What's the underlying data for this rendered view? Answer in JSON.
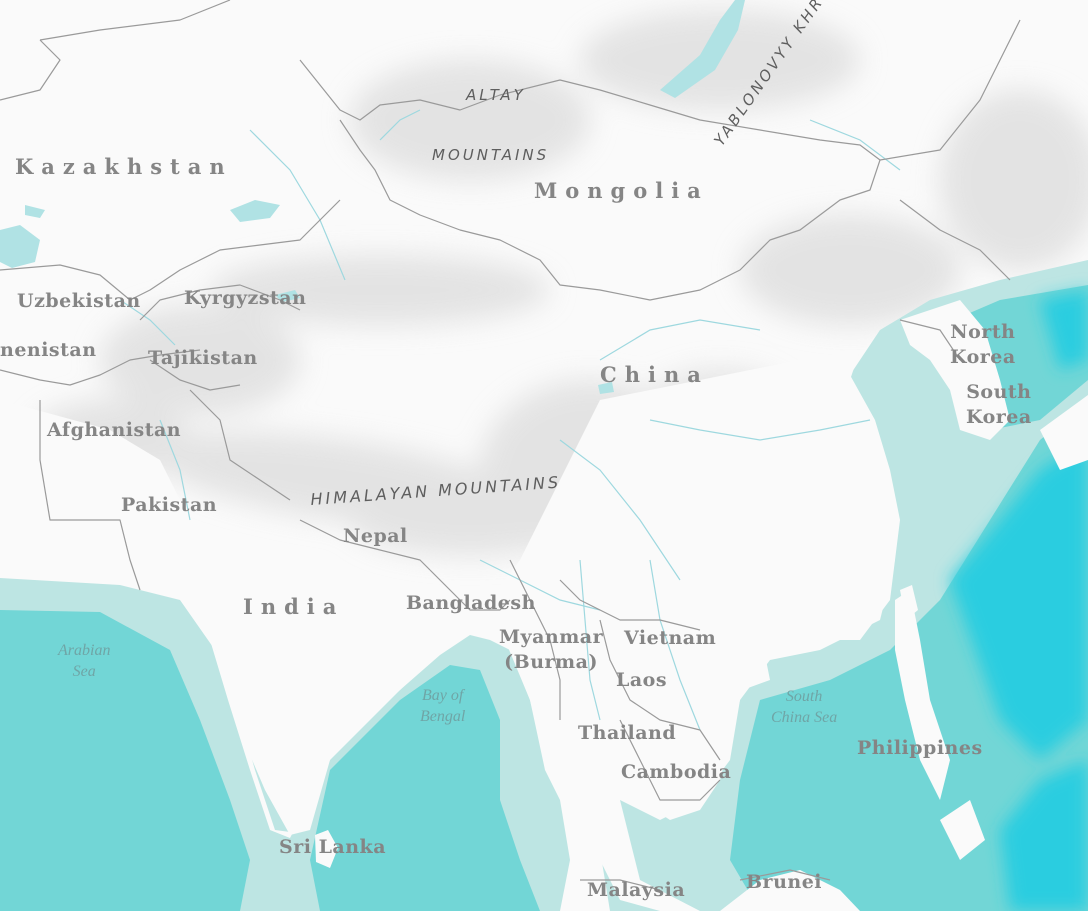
{
  "map": {
    "colors": {
      "land": "#fafafa",
      "border": "#9a9a9a",
      "relief": "#d7d7d7",
      "shallow_sea": "#bde5e3",
      "sea": "#72d6d6",
      "deep_sea": "#2ccde0",
      "river": "#9ed8df",
      "country_label": "#858585",
      "sea_label": "#6fa5a6",
      "mountain_label": "#5e5e5e"
    },
    "countries": {
      "kazakhstan": "Kazakhstan",
      "mongolia": "Mongolia",
      "uzbekistan": "Uzbekistan",
      "kyrgyzstan": "Kyrgyzstan",
      "turkmenistan_partial": "nenistan",
      "tajikistan": "Tajikistan",
      "afghanistan": "Afghanistan",
      "pakistan": "Pakistan",
      "nepal": "Nepal",
      "india": "India",
      "bangladesh": "Bangladesh",
      "china": "China",
      "north_korea": [
        "North",
        "Korea"
      ],
      "south_korea": [
        "South",
        "Korea"
      ],
      "myanmar": [
        "Myanmar",
        "(Burma)"
      ],
      "vietnam": "Vietnam",
      "laos": "Laos",
      "thailand": "Thailand",
      "cambodia": "Cambodia",
      "philippines": "Philippines",
      "sri_lanka": "Sri Lanka",
      "malaysia": "Malaysia",
      "brunei": "Brunei"
    },
    "seas": {
      "arabian_sea": [
        "Arabian",
        "Sea"
      ],
      "bay_of_bengal": [
        "Bay of",
        "Bengal"
      ],
      "south_china_sea": [
        "South",
        "China Sea"
      ]
    },
    "mountains": {
      "altay": "ALTAY",
      "altay_mountains": "MOUNTAINS",
      "himalayan": "HIMALAYAN MOUNTAINS",
      "yablonovyy": "YABLONOVYY KHR"
    }
  }
}
